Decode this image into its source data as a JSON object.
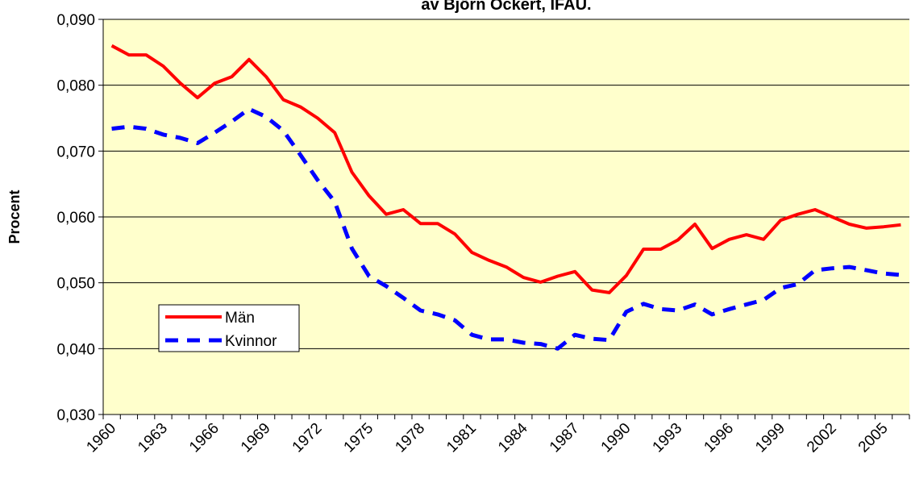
{
  "chart_data": {
    "type": "line",
    "title": "av Björn Öckert, IFAU.",
    "y_label": "Procent",
    "categories": [
      "1960",
      null,
      null,
      "1963",
      null,
      null,
      "1966",
      null,
      null,
      "1969",
      null,
      null,
      "1972",
      null,
      null,
      "1975",
      null,
      null,
      "1978",
      null,
      null,
      "1981",
      null,
      null,
      "1984",
      null,
      null,
      "1987",
      null,
      null,
      "1990",
      null,
      null,
      "1993",
      null,
      null,
      "1996",
      null,
      null,
      "1999",
      null,
      null,
      "2002",
      null,
      null,
      "2005",
      null
    ],
    "series": [
      {
        "name": "Män",
        "color": "#ff0000",
        "dash": "solid",
        "values": [
          0.086,
          0.0846,
          0.0846,
          0.0829,
          0.0803,
          0.0781,
          0.0803,
          0.0813,
          0.0839,
          0.0813,
          0.0778,
          0.0767,
          0.075,
          0.0728,
          0.0668,
          0.0632,
          0.0604,
          0.0611,
          0.059,
          0.059,
          0.0574,
          0.0546,
          0.0534,
          0.0524,
          0.0508,
          0.0501,
          0.051,
          0.0517,
          0.0489,
          0.0485,
          0.0511,
          0.0551,
          0.0551,
          0.0565,
          0.0589,
          0.0552,
          0.0566,
          0.0573,
          0.0566,
          0.0595,
          0.0604,
          0.0611,
          0.06,
          0.0589,
          0.0583,
          0.0585,
          0.0588
        ]
      },
      {
        "name": "Kvinnor",
        "color": "#0000ff",
        "dash": "dashed",
        "values": [
          0.0734,
          0.0737,
          0.0734,
          0.0725,
          0.072,
          0.0712,
          0.0728,
          0.0745,
          0.0764,
          0.0752,
          0.0731,
          0.0694,
          0.0656,
          0.0623,
          0.0552,
          0.051,
          0.0495,
          0.0477,
          0.0458,
          0.0452,
          0.0443,
          0.0421,
          0.0414,
          0.0414,
          0.0409,
          0.0407,
          0.04,
          0.0421,
          0.0415,
          0.0413,
          0.0456,
          0.0468,
          0.046,
          0.0458,
          0.0467,
          0.0452,
          0.046,
          0.0467,
          0.0474,
          0.0492,
          0.0498,
          0.0519,
          0.0522,
          0.0524,
          0.0519,
          0.0514,
          0.0512
        ]
      }
    ],
    "ylim": [
      0.03,
      0.09
    ],
    "yticks": [
      {
        "value": 0.03,
        "label": "0,030"
      },
      {
        "value": 0.04,
        "label": "0,040"
      },
      {
        "value": 0.05,
        "label": "0,050"
      },
      {
        "value": 0.06,
        "label": "0,060"
      },
      {
        "value": 0.07,
        "label": "0,070"
      },
      {
        "value": 0.08,
        "label": "0,080"
      },
      {
        "value": 0.09,
        "label": "0,090"
      }
    ],
    "grid": true,
    "background": "#ffffcc",
    "legend": "lower left"
  }
}
